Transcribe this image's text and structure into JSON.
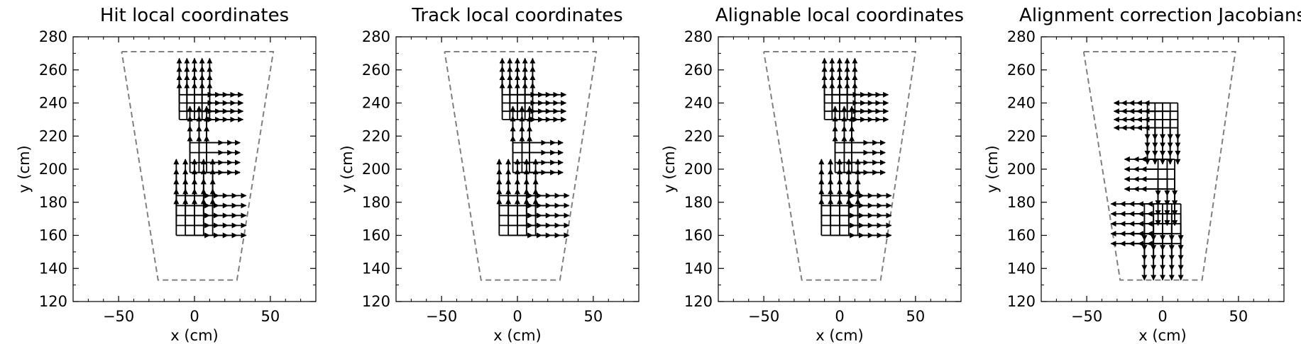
{
  "chart_data": [
    {
      "type": "vector-field",
      "title": "Hit local coordinates",
      "xlabel": "x (cm)",
      "ylabel": "y (cm)",
      "xlim": [
        -80,
        80
      ],
      "ylim": [
        120,
        280
      ],
      "xticks": [
        -50,
        0,
        50
      ],
      "yticks": [
        120,
        140,
        160,
        180,
        200,
        220,
        240,
        260,
        280
      ],
      "outline": [
        [
          -48,
          271
        ],
        [
          52,
          271
        ],
        [
          28,
          133
        ],
        [
          -24,
          133
        ],
        [
          -48,
          271
        ]
      ],
      "clusters": [
        {
          "xs": [
            -10,
            -5,
            0,
            5,
            10
          ],
          "ys": [
            230,
            235,
            240,
            245
          ],
          "u": [
            10,
            0
          ],
          "v": [
            0,
            10
          ]
        },
        {
          "xs": [
            -3,
            3,
            8
          ],
          "ys": [
            198,
            204,
            210,
            216
          ],
          "u": [
            10,
            0
          ],
          "v": [
            0,
            10
          ]
        },
        {
          "xs": [
            -12,
            -6,
            0,
            6,
            12
          ],
          "ys": [
            160,
            166,
            172,
            178,
            184
          ],
          "u": [
            10,
            0
          ],
          "v": [
            0,
            10
          ]
        }
      ]
    },
    {
      "type": "vector-field",
      "title": "Track local coordinates",
      "xlabel": "x (cm)",
      "ylabel": "y (cm)",
      "xlim": [
        -80,
        80
      ],
      "ylim": [
        120,
        280
      ],
      "xticks": [
        -50,
        0,
        50
      ],
      "yticks": [
        120,
        140,
        160,
        180,
        200,
        220,
        240,
        260,
        280
      ],
      "outline": [
        [
          -48,
          271
        ],
        [
          52,
          271
        ],
        [
          28,
          133
        ],
        [
          -24,
          133
        ],
        [
          -48,
          271
        ]
      ],
      "clusters": [
        {
          "xs": [
            -10,
            -5,
            0,
            5,
            10
          ],
          "ys": [
            230,
            235,
            240,
            245
          ],
          "u": [
            10,
            0
          ],
          "v": [
            0,
            10
          ]
        },
        {
          "xs": [
            -3,
            3,
            8
          ],
          "ys": [
            198,
            204,
            210,
            216
          ],
          "u": [
            10,
            0
          ],
          "v": [
            0,
            10
          ]
        },
        {
          "xs": [
            -12,
            -6,
            0,
            6,
            12
          ],
          "ys": [
            160,
            166,
            172,
            178,
            184
          ],
          "u": [
            10,
            0
          ],
          "v": [
            0,
            10
          ]
        }
      ]
    },
    {
      "type": "vector-field",
      "title": "Alignable local coordinates",
      "xlabel": "x (cm)",
      "ylabel": "y (cm)",
      "xlim": [
        -80,
        80
      ],
      "ylim": [
        120,
        280
      ],
      "xticks": [
        -50,
        0,
        50
      ],
      "yticks": [
        120,
        140,
        160,
        180,
        200,
        220,
        240,
        260,
        280
      ],
      "outline": [
        [
          -50,
          271
        ],
        [
          50,
          271
        ],
        [
          27,
          133
        ],
        [
          -25,
          133
        ],
        [
          -50,
          271
        ]
      ],
      "clusters": [
        {
          "xs": [
            -10,
            -5,
            0,
            5,
            10
          ],
          "ys": [
            230,
            235,
            240,
            245
          ],
          "u": [
            10,
            0
          ],
          "v": [
            0,
            10
          ]
        },
        {
          "xs": [
            -3,
            3,
            8
          ],
          "ys": [
            198,
            204,
            210,
            216
          ],
          "u": [
            10,
            0
          ],
          "v": [
            0,
            10
          ]
        },
        {
          "xs": [
            -12,
            -6,
            0,
            6,
            12
          ],
          "ys": [
            160,
            166,
            172,
            178,
            184
          ],
          "u": [
            10,
            0
          ],
          "v": [
            0,
            10
          ]
        }
      ]
    },
    {
      "type": "vector-field",
      "title": "Alignment correction Jacobians",
      "xlabel": "x (cm)",
      "ylabel": "y (cm)",
      "xlim": [
        -80,
        80
      ],
      "ylim": [
        120,
        280
      ],
      "xticks": [
        -50,
        0,
        50
      ],
      "yticks": [
        120,
        140,
        160,
        180,
        200,
        220,
        240,
        260,
        280
      ],
      "outline": [
        [
          -52,
          271
        ],
        [
          48,
          271
        ],
        [
          26,
          133
        ],
        [
          -28,
          133
        ],
        [
          -52,
          271
        ]
      ],
      "clusters": [
        {
          "xs": [
            -10,
            -5,
            0,
            5,
            10
          ],
          "ys": [
            225,
            230,
            235,
            240
          ],
          "u": [
            -10,
            0
          ],
          "v": [
            0,
            -10
          ]
        },
        {
          "xs": [
            -3,
            3,
            8
          ],
          "ys": [
            188,
            194,
            200,
            206
          ],
          "u": [
            -10,
            0
          ],
          "v": [
            0,
            -10
          ]
        },
        {
          "xs": [
            -12,
            -6,
            0,
            6,
            12
          ],
          "ys": [
            155,
            161,
            167,
            173,
            179
          ],
          "u": [
            -10,
            0
          ],
          "v": [
            0,
            -10
          ]
        }
      ]
    }
  ]
}
